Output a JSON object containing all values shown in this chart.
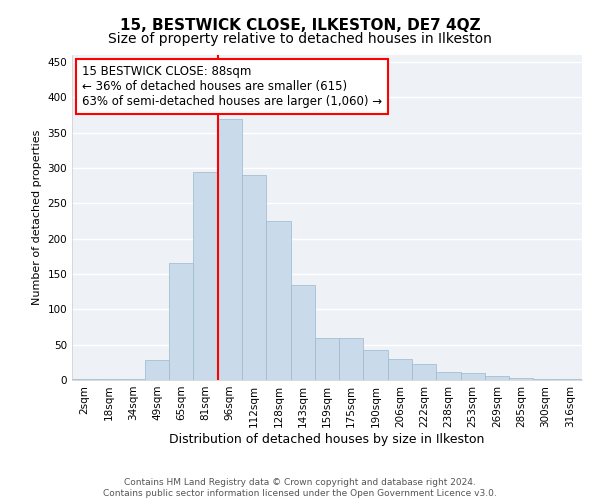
{
  "title": "15, BESTWICK CLOSE, ILKESTON, DE7 4QZ",
  "subtitle": "Size of property relative to detached houses in Ilkeston",
  "xlabel": "Distribution of detached houses by size in Ilkeston",
  "ylabel": "Number of detached properties",
  "bar_labels": [
    "2sqm",
    "18sqm",
    "34sqm",
    "49sqm",
    "65sqm",
    "81sqm",
    "96sqm",
    "112sqm",
    "128sqm",
    "143sqm",
    "159sqm",
    "175sqm",
    "190sqm",
    "206sqm",
    "222sqm",
    "238sqm",
    "253sqm",
    "269sqm",
    "285sqm",
    "300sqm",
    "316sqm"
  ],
  "bar_values": [
    2,
    2,
    2,
    28,
    165,
    295,
    370,
    290,
    225,
    135,
    60,
    60,
    42,
    30,
    22,
    12,
    10,
    5,
    3,
    1,
    1
  ],
  "bar_color": "#c9daea",
  "bar_edge_color": "#9ab8cc",
  "vline_x_index": 6,
  "vline_color": "red",
  "annotation_text": "15 BESTWICK CLOSE: 88sqm\n← 36% of detached houses are smaller (615)\n63% of semi-detached houses are larger (1,060) →",
  "annotation_box_color": "white",
  "annotation_box_edge": "red",
  "ylim": [
    0,
    460
  ],
  "yticks": [
    0,
    50,
    100,
    150,
    200,
    250,
    300,
    350,
    400,
    450
  ],
  "footer1": "Contains HM Land Registry data © Crown copyright and database right 2024.",
  "footer2": "Contains public sector information licensed under the Open Government Licence v3.0.",
  "bg_color": "#ffffff",
  "plot_bg_color": "#eef2f7",
  "grid_color": "white",
  "title_fontsize": 11,
  "subtitle_fontsize": 10,
  "xlabel_fontsize": 9,
  "ylabel_fontsize": 8,
  "tick_fontsize": 7.5,
  "footer_fontsize": 6.5
}
